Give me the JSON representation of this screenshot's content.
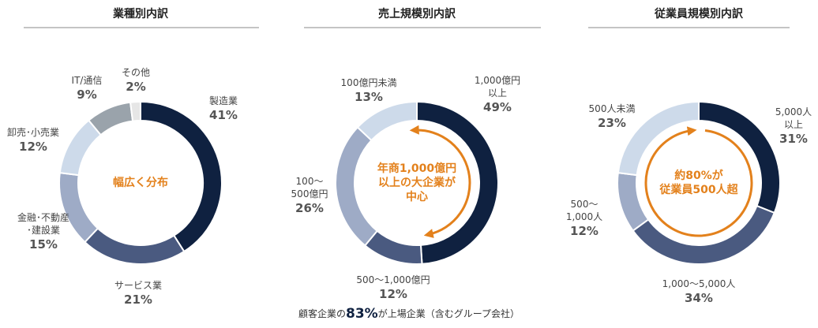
{
  "chart_data": [
    {
      "type": "pie",
      "title": "業種別内訳",
      "center_text": "幅広く分布",
      "categories": [
        "製造業",
        "サービス業",
        "金融･不動産\n･建設業",
        "卸売･小売業",
        "IT/通信",
        "その他"
      ],
      "values": [
        41,
        21,
        15,
        12,
        9,
        2
      ],
      "value_labels": [
        "41%",
        "21%",
        "15%",
        "12%",
        "9%",
        "2%"
      ],
      "colors": [
        "#0f2140",
        "#4a5a80",
        "#9eabc6",
        "#cddaea",
        "#9aa3ab",
        "#e6e6e6"
      ]
    },
    {
      "type": "pie",
      "title": "売上規模別内訳",
      "center_text": "年商1,000億円\n以上の大企業が\n中心",
      "categories": [
        "1,000億円\n以上",
        "500～1,000億円",
        "100～\n500億円",
        "100億円未満"
      ],
      "values": [
        49,
        12,
        26,
        13
      ],
      "value_labels": [
        "49%",
        "12%",
        "26%",
        "13%"
      ],
      "colors": [
        "#0f2140",
        "#4a5a80",
        "#9eabc6",
        "#cddaea"
      ]
    },
    {
      "type": "pie",
      "title": "従業員規模別内訳",
      "center_text": "約80%が\n従業員500人超",
      "categories": [
        "5,000人\n以上",
        "1,000～5,000人",
        "500～\n1,000人",
        "500人未満"
      ],
      "values": [
        31,
        34,
        12,
        23
      ],
      "value_labels": [
        "31%",
        "34%",
        "12%",
        "23%"
      ],
      "colors": [
        "#0f2140",
        "#4a5a80",
        "#9eabc6",
        "#cddaea"
      ]
    }
  ],
  "footer": {
    "before": "顧客企業の",
    "highlight": "83%",
    "after": "が上場企業（含むグループ会社）"
  }
}
